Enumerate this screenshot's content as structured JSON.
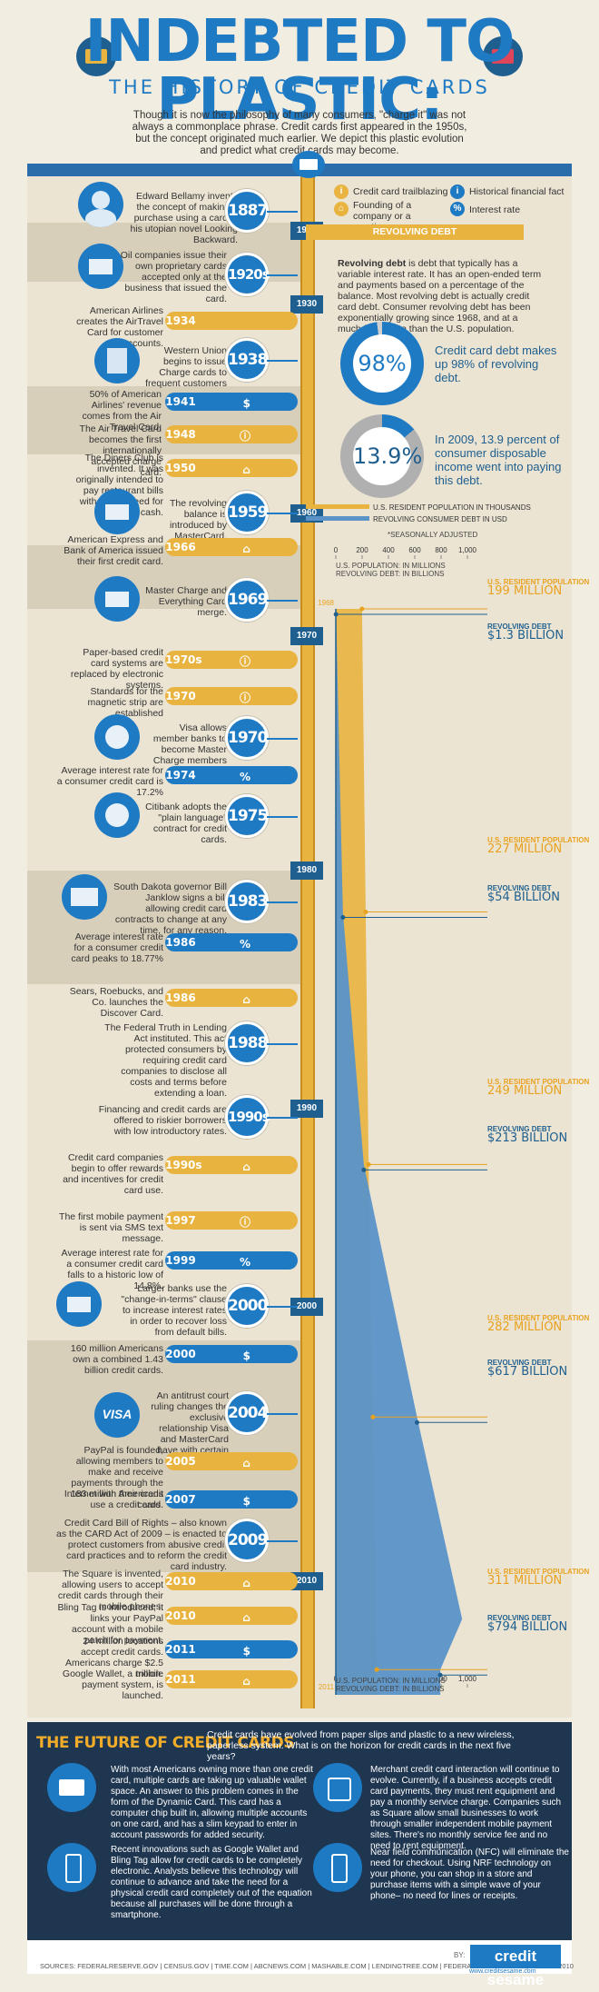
{
  "header": {
    "title": "INDEBTED TO PLASTIC:",
    "subtitle": "THE HISTORY OF CREDIT CARDS",
    "intro": "Though it is now the philosophy of many consumers, \"charge it\" was not always a commonplace phrase. Credit cards first appeared in the 1950s, but the concept originated much earlier. We depict this plastic evolution and predict what credit cards may become."
  },
  "legend": {
    "trailblazing": "Credit card trailblazing",
    "founding": "Founding of a company or a practice",
    "historical": "Historical financial fact",
    "interest": "Interest rate"
  },
  "decades": [
    "1900",
    "1930",
    "1960",
    "1970",
    "1980",
    "1990",
    "2000",
    "2010"
  ],
  "events": [
    {
      "year": "1887",
      "text": "Edward Bellamy invents the concept of making a purchase using a card in his utopian novel Looking Backward."
    },
    {
      "year": "1920s",
      "text": "Oil companies issue their own proprietary cards accepted only at the business that issued the card."
    },
    {
      "year": "1934",
      "text": "American Airlines creates the AirTravel Card for customer accounts."
    },
    {
      "year": "1938",
      "text": "Western Union begins to issue Charge cards to frequent customers"
    },
    {
      "year": "1941",
      "text": "50% of American Airlines' revenue comes from the Air Travel Card."
    },
    {
      "year": "1948",
      "text": "The Air Travel Card becomes the first internationally accepted charge card."
    },
    {
      "year": "1950",
      "text": "The Diners Club is invented. It was originally intended to pay restaurant bills without the need for cash."
    },
    {
      "year": "1959",
      "text": "The revolving balance is introduced by MasterCard."
    },
    {
      "year": "1966",
      "text": "American Express and Bank of America issued their first credit card."
    },
    {
      "year": "1969",
      "text": "Master Charge and Everything Card merge."
    },
    {
      "year": "1970s",
      "text": "Paper-based credit card systems are replaced by electronic systems."
    },
    {
      "year": "1970",
      "text": "Standards for the magnetic strip are established"
    },
    {
      "year": "1970",
      "text": "Visa allows member banks to become Master Charge members after lawsuit."
    },
    {
      "year": "1974",
      "text": "Average interest rate for a consumer credit card is 17.2%"
    },
    {
      "year": "1975",
      "text": "Citibank adopts the \"plain language\" contract for credit cards."
    },
    {
      "year": "1983",
      "text": "South Dakota governor Bill Janklow signs a bill allowing credit card contracts to change at any time, for any reason."
    },
    {
      "year": "1986",
      "text": "Average interest rate for a consumer credit card peaks to 18.77%"
    },
    {
      "year": "1986",
      "text": "Sears, Roebucks, and Co. launches the Discover Card."
    },
    {
      "year": "1988",
      "text": "The Federal Truth in Lending Act instituted. This act protected consumers by requiring credit card companies to disclose all costs and terms before extending a loan."
    },
    {
      "year": "1990s",
      "text": "Financing and credit cards are offered to riskier borrowers with low introductory rates."
    },
    {
      "year": "1990s",
      "text": "Credit card companies begin to offer rewards and incentives for credit card use."
    },
    {
      "year": "1997",
      "text": "The first mobile payment is sent via SMS text message."
    },
    {
      "year": "1999",
      "text": "Average interest rate for a consumer credit card falls to a historic low of 14.8%."
    },
    {
      "year": "2000",
      "text": "Larger banks use the \"change-in-terms\" clause to increase interest rates in order to recover loss from default bills."
    },
    {
      "year": "2000",
      "text": "160 million Americans own a combined 1.43 billion credit cards."
    },
    {
      "year": "2004",
      "text": "An antitrust court ruling changes the exclusive relationship Visa and MasterCard have with certain banks."
    },
    {
      "year": "2005",
      "text": "PayPal is founded, allowing members to make and receive payments through the Internet with their credit cards."
    },
    {
      "year": "2007",
      "text": "183 million Americans use a credit card."
    },
    {
      "year": "2009",
      "text": "Credit Card Bill of Rights – also known as the CARD Act of 2009 – is enacted to protect customers from abusive credit card practices and to reform the credit card industry."
    },
    {
      "year": "2010",
      "text": "The Square is invented, allowing users to accept credit cards through their mobile phones."
    },
    {
      "year": "2010",
      "text": "Bling Tag is introduced; it links your PayPal account with a mobile patch for payment."
    },
    {
      "year": "2011",
      "text": "24 million locations accept credit cards. Americans charge $2.5 trillion."
    },
    {
      "year": "2011",
      "text": "Google Wallet, a mobile payment system, is launched."
    }
  ],
  "revolving": {
    "banner": "REVOLVING DEBT",
    "def_term": "Revolving debt",
    "def_text": " is debt that typically has a variable interest rate. It has an open-ended term and payments based on a percentage of the balance. Most revolving debt is actually credit card debt. Consumer revolving debt has been exponentially growing since 1968, and at a much faster rate than the U.S. population.",
    "stat1_value": "98%",
    "stat1_text": "Credit card debt makes up 98% of revolving debt.",
    "stat2_value": "13.9%",
    "stat2_text": "In 2009, 13.9 percent of consumer disposable income went into paying this debt."
  },
  "chart_data": {
    "type": "area",
    "legend": [
      "U.S. RESIDENT POPULATION IN THOUSANDS",
      "REVOLVING CONSUMER DEBT IN USD"
    ],
    "legend_note": "*SEASONALLY ADJUSTED",
    "axis_ticks": [
      "0",
      "200",
      "400",
      "600",
      "800",
      "1,000"
    ],
    "xlim": [
      0,
      1000
    ],
    "axis_label_1": "U.S. POPULATION: IN MILLIONS",
    "axis_label_2": "REVOLVING DEBT: IN BILLIONS",
    "years": [
      "1968",
      "2011"
    ],
    "series": [
      {
        "name": "U.S. RESIDENT POPULATION",
        "color": "#e9b340",
        "points": [
          {
            "year": 1968,
            "value": 199
          },
          {
            "year": 1980,
            "value": 227
          },
          {
            "year": 1990,
            "value": 249
          },
          {
            "year": 2000,
            "value": 282
          },
          {
            "year": 2010,
            "value": 311
          }
        ]
      },
      {
        "name": "REVOLVING DEBT",
        "color": "#5b93c8",
        "points": [
          {
            "year": 1968,
            "value": 1.3
          },
          {
            "year": 1980,
            "value": 54
          },
          {
            "year": 1990,
            "value": 213
          },
          {
            "year": 2000,
            "value": 617
          },
          {
            "year": 2008,
            "value": 960
          },
          {
            "year": 2010,
            "value": 794
          }
        ]
      }
    ],
    "annotations": [
      {
        "pop_label": "U.S. RESIDENT POPULATION",
        "pop": "199 MILLION",
        "debt_label": "REVOLVING DEBT",
        "debt": "$1.3 BILLION"
      },
      {
        "pop_label": "U.S. RESIDENT POPULATION",
        "pop": "227 MILLION",
        "debt_label": "REVOLVING DEBT",
        "debt": "$54 BILLION"
      },
      {
        "pop_label": "U.S. RESIDENT POPULATION",
        "pop": "249 MILLION",
        "debt_label": "REVOLVING DEBT",
        "debt": "$213 BILLION"
      },
      {
        "pop_label": "U.S. RESIDENT POPULATION",
        "pop": "282 MILLION",
        "debt_label": "REVOLVING DEBT",
        "debt": "$617 BILLION"
      },
      {
        "pop_label": "U.S. RESIDENT POPULATION",
        "pop": "311 MILLION",
        "debt_label": "REVOLVING DEBT",
        "debt": "$794 BILLION"
      }
    ]
  },
  "future": {
    "title": "THE FUTURE OF CREDIT CARDS",
    "intro": "Credit cards have evolved from paper slips and plastic to a new wireless, paperless system. What is on the horizon for credit cards in the next five years?",
    "p1": "With most Americans owning more than one credit card, multiple cards are taking up valuable wallet space. An answer to this problem comes in the form of the Dynamic Card. This card has a computer chip built in, allowing multiple accounts on one card, and has a slim keypad to enter in account passwords for added security.",
    "p2": "Merchant credit card interaction will continue to evolve. Currently, if a business accepts credit card payments, they must rent equipment and pay a monthly service charge. Companies such as Square allow small businesses to work through smaller independent mobile payment sites. There's no monthly service fee and no need to rent equipment.",
    "p3": "Recent innovations such as Google Wallet and Bling Tag allow for credit cards to be completely electronic. Analysts believe this technology will continue to advance and take the need for a physical credit card completely out of the equation because all purchases will be done through a smartphone.",
    "p4": "Near field communication (NFC) will eliminate the need for checkout. Using NRF technology on your phone, you can shop in a store and purchase items with a simple wave of your phone– no need for lines or receipts."
  },
  "footer": {
    "sources": "SOURCES: FEDERALRESERVE.GOV | CENSUS.GOV | TIME.COM | ABCNEWS.COM | MASHABLE.COM | LENDINGTREE.COM | FEDERALRESERVE.GOV | CENSUS2010",
    "by": "BY:",
    "brand": "credit sesame",
    "url": "www.creditsesame.com"
  },
  "colors": {
    "blue": "#1f7ac4",
    "gold": "#e9b340",
    "navy": "#1f3651"
  }
}
